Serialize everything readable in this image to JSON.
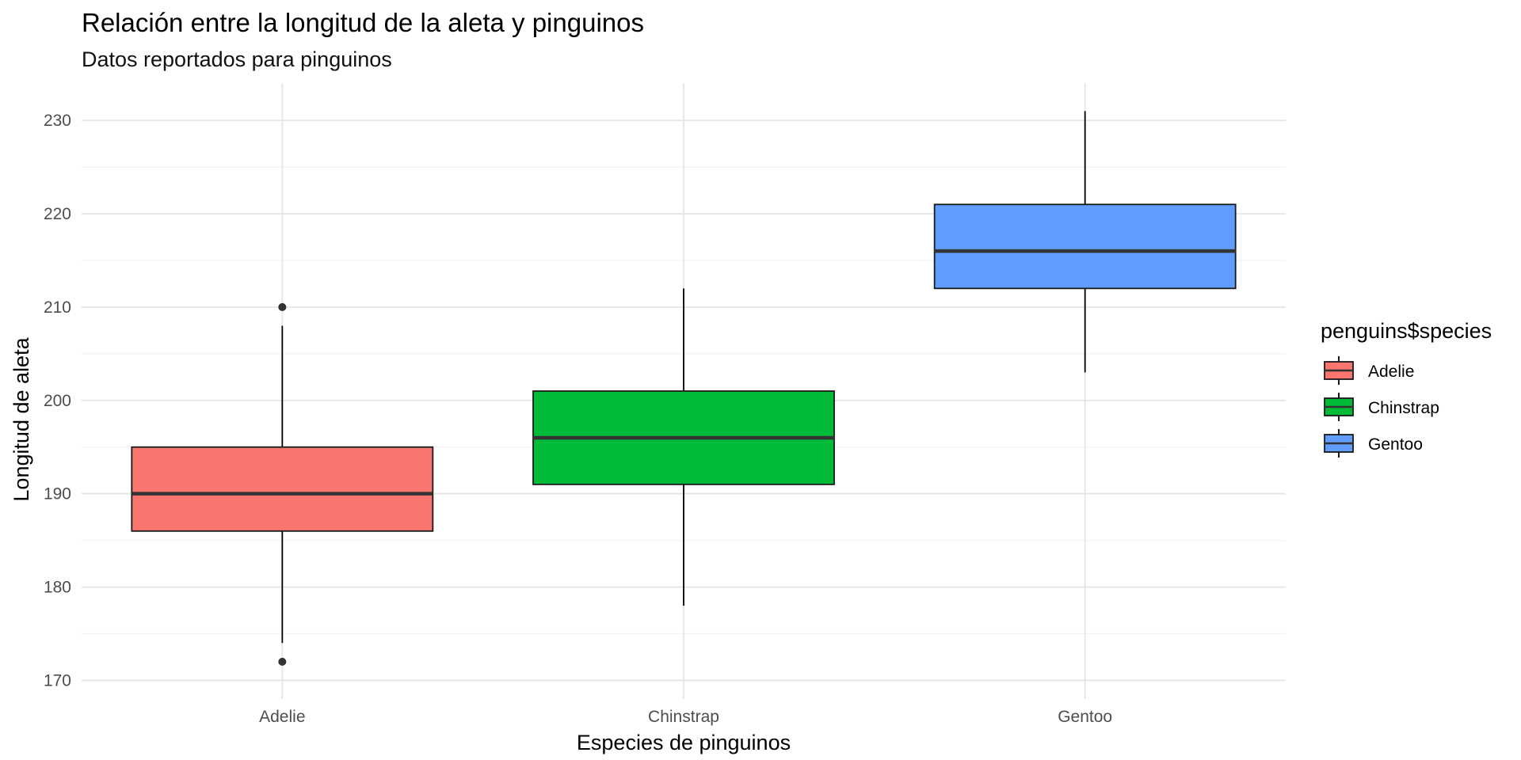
{
  "chart_data": {
    "type": "boxplot",
    "title": "Relación entre la longitud de la aleta y pinguinos",
    "subtitle": "Datos reportados para pinguinos",
    "xlabel": "Especies de pinguinos",
    "ylabel": "Longitud de aleta",
    "ylim": [
      168,
      234
    ],
    "yticks": [
      170,
      180,
      190,
      200,
      210,
      220,
      230
    ],
    "grid": true,
    "legend": {
      "title": "penguins$species",
      "position": "right"
    },
    "categories": [
      "Adelie",
      "Chinstrap",
      "Gentoo"
    ],
    "series": [
      {
        "name": "Adelie",
        "color": "#F8766D",
        "min": 174,
        "q1": 186,
        "median": 190,
        "q3": 195,
        "max": 208,
        "outliers": [
          210,
          172
        ]
      },
      {
        "name": "Chinstrap",
        "color": "#00BA38",
        "min": 178,
        "q1": 191,
        "median": 196,
        "q3": 201,
        "max": 212,
        "outliers": []
      },
      {
        "name": "Gentoo",
        "color": "#619CFF",
        "min": 203,
        "q1": 212,
        "median": 216,
        "q3": 221,
        "max": 231,
        "outliers": []
      }
    ]
  }
}
